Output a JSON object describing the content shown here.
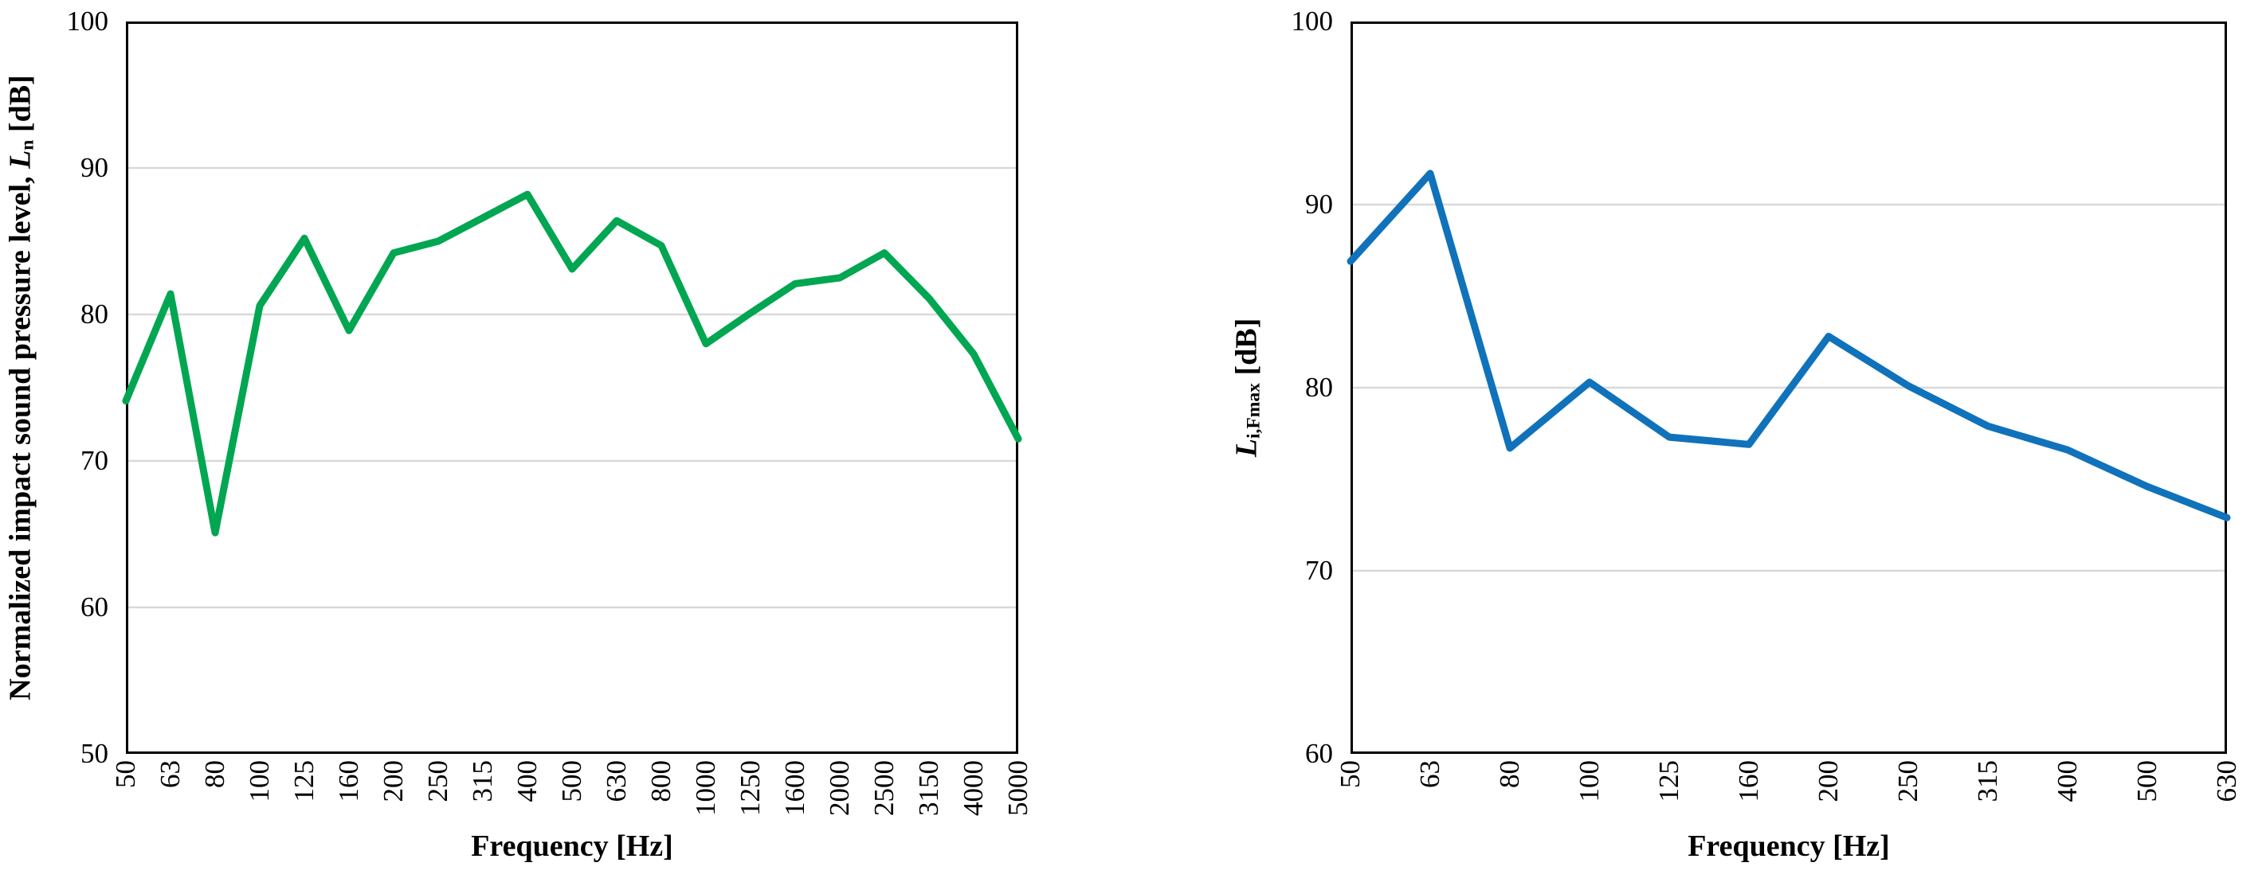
{
  "page": {
    "background": "#FFFFFF",
    "axis_color": "#000000",
    "gridline_color": "#D9D9D9"
  },
  "chart_data": [
    {
      "type": "line",
      "title": "",
      "xlabel": "Frequency [Hz]",
      "ylabel_prefix": "Normalized impact sound pressure level, ",
      "ylabel_symbol": "L",
      "ylabel_subscript": "n",
      "ylabel_suffix": " [dB]",
      "line_color": "#00A651",
      "ylim": [
        50,
        100
      ],
      "yticks": [
        "50",
        "60",
        "70",
        "80",
        "90",
        "100"
      ],
      "grid": true,
      "legend_position": "none",
      "categories": [
        "50",
        "63",
        "80",
        "100",
        "125",
        "160",
        "200",
        "250",
        "315",
        "400",
        "500",
        "630",
        "800",
        "1000",
        "1250",
        "1600",
        "2000",
        "2500",
        "3150",
        "4000",
        "5000"
      ],
      "values": [
        74.1,
        81.4,
        65.1,
        80.6,
        85.2,
        78.9,
        84.2,
        85.0,
        86.6,
        88.2,
        83.1,
        86.4,
        84.7,
        78.0,
        80.1,
        82.1,
        82.5,
        84.2,
        81.1,
        77.3,
        71.5
      ]
    },
    {
      "type": "line",
      "title": "",
      "xlabel": "Frequency [Hz]",
      "ylabel_prefix": "",
      "ylabel_symbol": "L",
      "ylabel_subscript": "i,Fmax",
      "ylabel_suffix": " [dB]",
      "line_color": "#1072BA",
      "ylim": [
        60,
        100
      ],
      "yticks": [
        "60",
        "70",
        "80",
        "90",
        "100"
      ],
      "grid": true,
      "legend_position": "none",
      "categories": [
        "50",
        "63",
        "80",
        "100",
        "125",
        "160",
        "200",
        "250",
        "315",
        "400",
        "500",
        "630"
      ],
      "values": [
        86.9,
        91.7,
        76.7,
        80.3,
        77.3,
        76.9,
        82.8,
        80.1,
        77.9,
        76.6,
        74.6,
        72.9
      ]
    }
  ]
}
